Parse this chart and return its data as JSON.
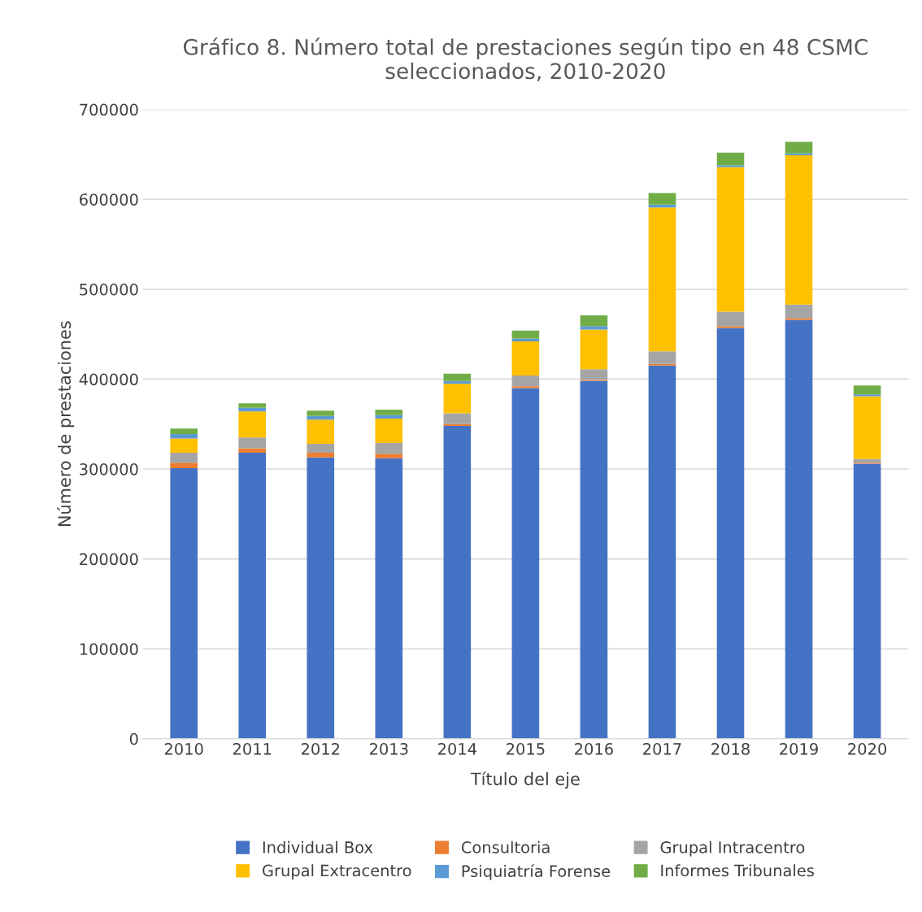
{
  "chart_data": {
    "type": "bar",
    "stacked": true,
    "title": "Gráfico 8. Número total de prestaciones según tipo en 48 CSMC seleccionados, 2010-2020",
    "xlabel": "Título del eje",
    "ylabel": "Número de prestaciones",
    "categories": [
      "2010",
      "2011",
      "2012",
      "2013",
      "2014",
      "2015",
      "2016",
      "2017",
      "2018",
      "2019",
      "2020"
    ],
    "series": [
      {
        "name": "Individual Box",
        "color": "#4472c4",
        "values": [
          301000,
          318000,
          313000,
          312000,
          348000,
          390000,
          398000,
          415000,
          457000,
          466000,
          306000
        ]
      },
      {
        "name": "Consultoria",
        "color": "#ed7d31",
        "values": [
          6000,
          5000,
          5000,
          5000,
          2000,
          2000,
          1000,
          2000,
          2000,
          2000,
          1000
        ]
      },
      {
        "name": "Grupal Intracentro",
        "color": "#a5a5a5",
        "values": [
          11000,
          12000,
          10000,
          12000,
          12000,
          12000,
          12000,
          14000,
          16000,
          15000,
          4000
        ]
      },
      {
        "name": "Grupal Extracentro",
        "color": "#ffc000",
        "values": [
          16000,
          29000,
          27000,
          27000,
          33000,
          38000,
          44000,
          160000,
          161000,
          166000,
          70000
        ]
      },
      {
        "name": "Psiquiatría Forense",
        "color": "#5b9bd5",
        "values": [
          5000,
          4000,
          4000,
          4000,
          3000,
          3000,
          4000,
          3000,
          2000,
          2000,
          2000
        ]
      },
      {
        "name": "Informes Tribunales",
        "color": "#70ad47",
        "values": [
          6000,
          5000,
          6000,
          6000,
          8000,
          9000,
          12000,
          13000,
          14000,
          13000,
          10000
        ]
      }
    ],
    "ylim": [
      0,
      700000
    ],
    "yticks": [
      0,
      100000,
      200000,
      300000,
      400000,
      500000,
      600000,
      700000
    ],
    "grid": "y",
    "legend": "bottom"
  }
}
